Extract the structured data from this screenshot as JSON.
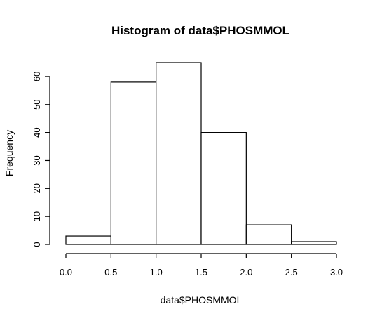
{
  "chart_data": {
    "type": "bar",
    "title": "Histogram of data$PHOSMMOL",
    "xlabel": "data$PHOSMMOL",
    "ylabel": "Frequency",
    "bins": [
      {
        "start": 0.0,
        "end": 0.5,
        "count": 3
      },
      {
        "start": 0.5,
        "end": 1.0,
        "count": 58
      },
      {
        "start": 1.0,
        "end": 1.5,
        "count": 65
      },
      {
        "start": 1.5,
        "end": 2.0,
        "count": 40
      },
      {
        "start": 2.0,
        "end": 2.5,
        "count": 7
      },
      {
        "start": 2.5,
        "end": 3.0,
        "count": 1
      }
    ],
    "xlim": [
      0.0,
      3.0
    ],
    "ylim": [
      0,
      65
    ],
    "x_ticks": [
      "0.0",
      "0.5",
      "1.0",
      "1.5",
      "2.0",
      "2.5",
      "3.0"
    ],
    "y_ticks": [
      "0",
      "10",
      "20",
      "30",
      "40",
      "50",
      "60"
    ],
    "grid": false,
    "legend": "none"
  }
}
